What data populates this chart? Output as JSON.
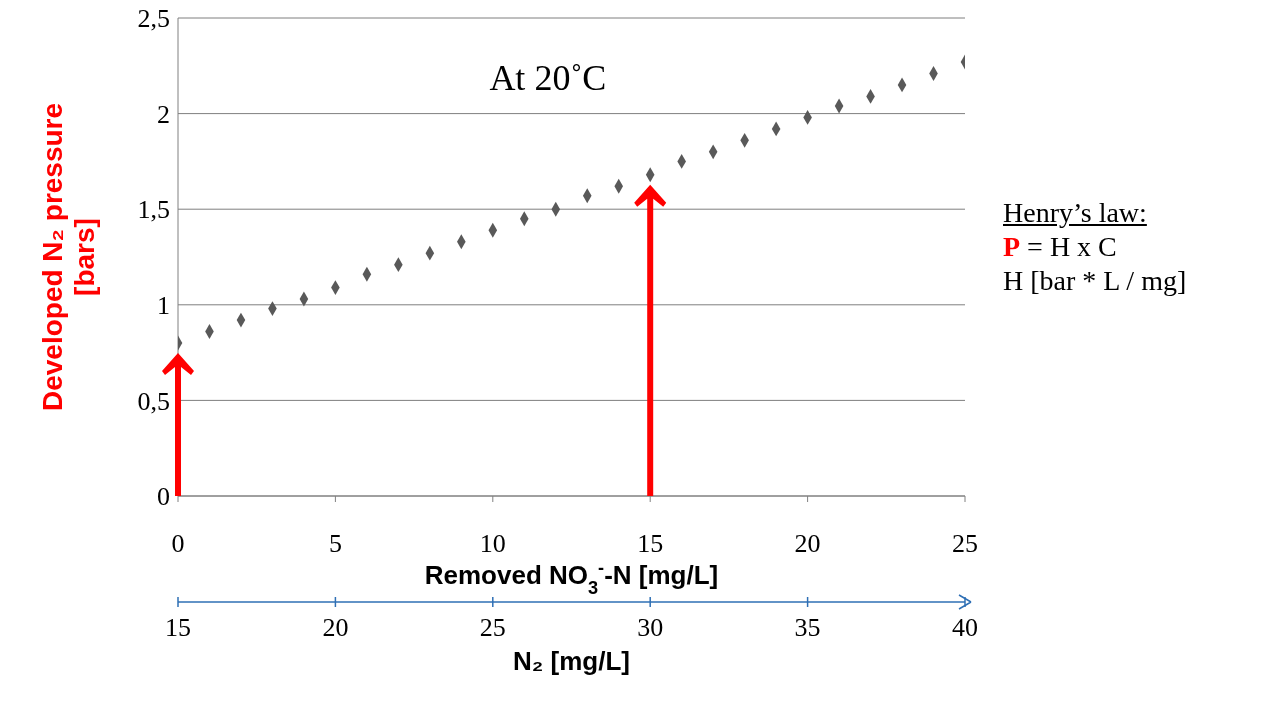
{
  "chart_data": {
    "type": "scatter",
    "ylabel": "Developed N₂ pressure [bars]",
    "xlabel": "Removed NO$_{3}$$^{-}$-N [mg/L]",
    "x2label": "N₂ [mg/L]",
    "annotations": [
      "At 20˚C",
      "Henry’s law:",
      "P = H x C",
      "H [bar * L / mg]"
    ],
    "x": [
      0,
      1,
      2,
      3,
      4,
      5,
      6,
      7,
      8,
      9,
      10,
      11,
      12,
      13,
      14,
      15,
      16,
      17,
      18,
      19,
      20,
      21,
      22,
      23,
      24,
      25
    ],
    "series": [
      {
        "color": "#595959",
        "values": [
          0.8,
          0.86,
          0.92,
          0.98,
          1.03,
          1.09,
          1.16,
          1.21,
          1.27,
          1.33,
          1.39,
          1.45,
          1.5,
          1.57,
          1.62,
          1.68,
          1.75,
          1.8,
          1.86,
          1.92,
          1.98,
          2.04,
          2.09,
          2.15,
          2.21,
          2.27
        ]
      }
    ],
    "xlim": [
      0,
      25
    ],
    "xticks": [
      0,
      5,
      10,
      15,
      20,
      25
    ],
    "x2lim": [
      15,
      40
    ],
    "x2ticks": [
      15,
      20,
      25,
      30,
      35,
      40
    ],
    "ylim": [
      0,
      2.5
    ],
    "yticks": [
      0,
      {
        "value": 0.5,
        "label": "0,5"
      },
      1,
      {
        "value": 1.5,
        "label": "1,5"
      },
      2,
      {
        "value": 2.5,
        "label": "2,5"
      }
    ],
    "grid": "y",
    "legend": false,
    "marker": "diamond"
  }
}
